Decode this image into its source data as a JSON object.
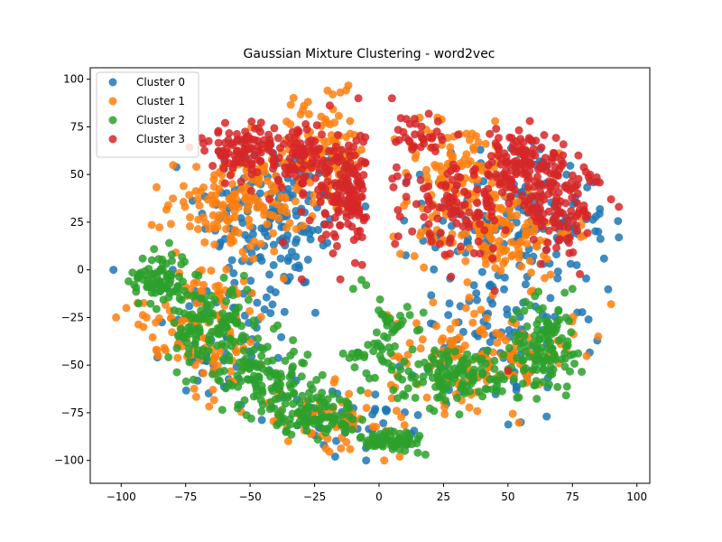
{
  "chart_data": {
    "type": "scatter",
    "title": "Gaussian Mixture Clustering - word2vec",
    "xlabel": "",
    "ylabel": "",
    "xlim": [
      -112,
      105
    ],
    "ylim": [
      -112,
      106
    ],
    "xticks": [
      -100,
      -75,
      -50,
      -25,
      0,
      25,
      50,
      75,
      100
    ],
    "yticks": [
      -100,
      -75,
      -50,
      -25,
      0,
      25,
      50,
      75,
      100
    ],
    "grid": false,
    "legend_position": "top-left",
    "series": [
      {
        "name": "Cluster 0",
        "color": "#1f77b4",
        "regions": [
          {
            "cx": -40,
            "cy": 30,
            "sx": 25,
            "sy": 35,
            "n": 160
          },
          {
            "cx": 55,
            "cy": 25,
            "sx": 30,
            "sy": 35,
            "n": 170
          },
          {
            "cx": -60,
            "cy": -40,
            "sx": 25,
            "sy": 35,
            "n": 90
          },
          {
            "cx": 50,
            "cy": -40,
            "sx": 30,
            "sy": 25,
            "n": 90
          },
          {
            "cx": -10,
            "cy": -80,
            "sx": 20,
            "sy": 12,
            "n": 40
          }
        ],
        "points": [
          [
            -103,
            0
          ],
          [
            -80,
            0
          ],
          [
            85,
            20
          ],
          [
            93,
            17
          ],
          [
            -17,
            -98
          ],
          [
            -5,
            -100
          ],
          [
            55,
            -80
          ],
          [
            65,
            -77
          ]
        ]
      },
      {
        "name": "Cluster 1",
        "color": "#ff7f0e",
        "regions": [
          {
            "cx": -55,
            "cy": 35,
            "sx": 22,
            "sy": 22,
            "n": 150
          },
          {
            "cx": -22,
            "cy": 60,
            "sx": 18,
            "sy": 25,
            "n": 110
          },
          {
            "cx": 45,
            "cy": 20,
            "sx": 25,
            "sy": 20,
            "n": 150
          },
          {
            "cx": 30,
            "cy": 55,
            "sx": 20,
            "sy": 20,
            "n": 80
          },
          {
            "cx": -70,
            "cy": -30,
            "sx": 25,
            "sy": 30,
            "n": 120
          },
          {
            "cx": 40,
            "cy": -45,
            "sx": 30,
            "sy": 22,
            "n": 140
          },
          {
            "cx": -20,
            "cy": -80,
            "sx": 25,
            "sy": 15,
            "n": 60
          }
        ],
        "points": [
          [
            -20,
            94
          ],
          [
            -18,
            92
          ],
          [
            -15,
            93
          ],
          [
            -102,
            -25
          ],
          [
            -98,
            -20
          ],
          [
            2,
            -100
          ],
          [
            8,
            -98
          ],
          [
            90,
            -18
          ],
          [
            85,
            -35
          ],
          [
            45,
            78
          ]
        ]
      },
      {
        "name": "Cluster 2",
        "color": "#2ca02c",
        "regions": [
          {
            "cx": -85,
            "cy": -5,
            "sx": 10,
            "sy": 12,
            "n": 90
          },
          {
            "cx": -65,
            "cy": -30,
            "sx": 14,
            "sy": 18,
            "n": 110
          },
          {
            "cx": -45,
            "cy": -55,
            "sx": 15,
            "sy": 18,
            "n": 110
          },
          {
            "cx": -25,
            "cy": -75,
            "sx": 14,
            "sy": 10,
            "n": 90
          },
          {
            "cx": 5,
            "cy": -90,
            "sx": 10,
            "sy": 6,
            "n": 60
          },
          {
            "cx": 0,
            "cy": -35,
            "sx": 10,
            "sy": 18,
            "n": 60
          },
          {
            "cx": 30,
            "cy": -55,
            "sx": 22,
            "sy": 12,
            "n": 130
          },
          {
            "cx": 65,
            "cy": -40,
            "sx": 12,
            "sy": 20,
            "n": 110
          }
        ],
        "points": [
          [
            18,
            -97
          ],
          [
            15,
            -96
          ],
          [
            10,
            -95
          ],
          [
            -10,
            -10
          ],
          [
            -5,
            -8
          ],
          [
            75,
            -10
          ],
          [
            72,
            -12
          ]
        ]
      },
      {
        "name": "Cluster 3",
        "color": "#d62728",
        "regions": [
          {
            "cx": -35,
            "cy": 60,
            "sx": 20,
            "sy": 15,
            "n": 120
          },
          {
            "cx": -10,
            "cy": 40,
            "sx": 15,
            "sy": 25,
            "n": 150
          },
          {
            "cx": -55,
            "cy": 65,
            "sx": 15,
            "sy": 10,
            "n": 60
          },
          {
            "cx": 55,
            "cy": 55,
            "sx": 20,
            "sy": 15,
            "n": 130
          },
          {
            "cx": 70,
            "cy": 35,
            "sx": 15,
            "sy": 20,
            "n": 110
          },
          {
            "cx": 30,
            "cy": 30,
            "sx": 15,
            "sy": 20,
            "n": 90
          },
          {
            "cx": 15,
            "cy": 70,
            "sx": 10,
            "sy": 8,
            "n": 30
          }
        ],
        "points": [
          [
            50,
            -53
          ],
          [
            93,
            33
          ],
          [
            90,
            37
          ],
          [
            -8,
            90
          ],
          [
            5,
            90
          ],
          [
            -30,
            -5
          ],
          [
            -15,
            -5
          ]
        ]
      }
    ]
  }
}
